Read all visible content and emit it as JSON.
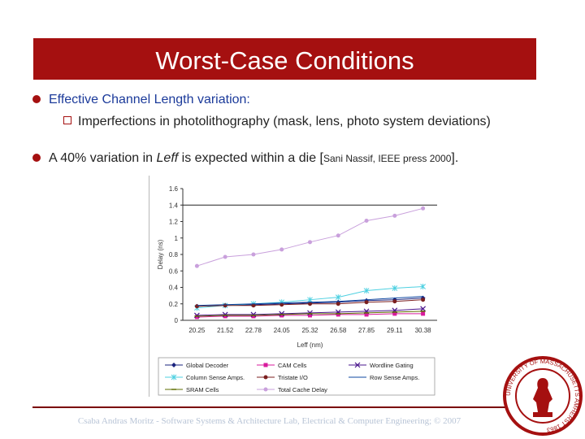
{
  "slide": {
    "title": "Worst-Case Conditions",
    "bullet1": "Effective Channel Length variation:",
    "bullet1_sub": "Imperfections in photolithography (mask, lens, photo system deviations)",
    "bullet2_a": "A 40% variation in ",
    "bullet2_leff": "Leff",
    "bullet2_b": " is expected within a die [",
    "bullet2_cite": "Sani Nassif, IEEE press 2000",
    "bullet2_c": "].",
    "footer": "Csaba Andras Moritz - Software Systems & Architecture Lab, Electrical & Computer Engineering; © 2007",
    "seal_text": "UNIVERSITY OF MASSACHUSETTS AMHERST 1863"
  },
  "colors": {
    "title_bg": "#a51010",
    "bullet": "#a51010"
  },
  "chart_data": {
    "type": "line",
    "title": "",
    "xlabel": "Leff (nm)",
    "ylabel": "Delay (ns)",
    "categories": [
      "20.25",
      "21.52",
      "22.78",
      "24.05",
      "25.32",
      "26.58",
      "27.85",
      "29.11",
      "30.38"
    ],
    "ylim": [
      0,
      1.6
    ],
    "yticks": [
      "0",
      "0.2",
      "0.4",
      "0.6",
      "0.8",
      "1",
      "1.2",
      "1.4",
      "1.6"
    ],
    "reference_line": 1.4,
    "series": [
      {
        "name": "Global Decoder",
        "color": "#1a237e",
        "marker": "diamond",
        "values": [
          0.17,
          0.18,
          0.19,
          0.2,
          0.21,
          0.22,
          0.24,
          0.25,
          0.27
        ]
      },
      {
        "name": "CAM Cells",
        "color": "#d81b9c",
        "marker": "square",
        "values": [
          0.04,
          0.05,
          0.05,
          0.06,
          0.06,
          0.07,
          0.07,
          0.08,
          0.08
        ]
      },
      {
        "name": "Wordline Gating",
        "color": "#4a148c",
        "marker": "x",
        "values": [
          0.06,
          0.07,
          0.07,
          0.08,
          0.09,
          0.1,
          0.11,
          0.12,
          0.14
        ]
      },
      {
        "name": "Column Sense Amps.",
        "color": "#4dd0e1",
        "marker": "star",
        "values": [
          0.15,
          0.18,
          0.2,
          0.22,
          0.25,
          0.28,
          0.36,
          0.39,
          0.41
        ]
      },
      {
        "name": "Tristate I/O",
        "color": "#7b1f1f",
        "marker": "circle",
        "values": [
          0.17,
          0.18,
          0.18,
          0.19,
          0.2,
          0.2,
          0.22,
          0.23,
          0.25
        ]
      },
      {
        "name": "Row Sense Amps.",
        "color": "#0d47a1",
        "marker": "none",
        "values": [
          0.18,
          0.19,
          0.2,
          0.21,
          0.22,
          0.23,
          0.25,
          0.27,
          0.29
        ]
      },
      {
        "name": "SRAM Cells",
        "color": "#5d6d00",
        "marker": "dash",
        "values": [
          0.05,
          0.06,
          0.06,
          0.07,
          0.08,
          0.08,
          0.09,
          0.1,
          0.11
        ]
      },
      {
        "name": "Total Cache Delay",
        "color": "#c9a0dc",
        "marker": "circle",
        "values": [
          0.66,
          0.77,
          0.8,
          0.86,
          0.95,
          1.03,
          1.21,
          1.27,
          1.36
        ]
      }
    ]
  }
}
